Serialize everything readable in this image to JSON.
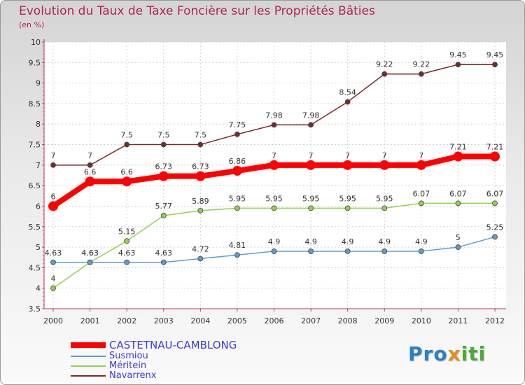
{
  "header": {
    "title": "Evolution du Taux de Taxe Foncière sur les Propriétés Bâties",
    "subtitle": "(en %)"
  },
  "logo": {
    "part1": "Pro",
    "part2": "x",
    "part3": "iti"
  },
  "chart_data": {
    "type": "line",
    "title": "Evolution du Taux de Taxe Foncière sur les Propriétés Bâties",
    "ylabel": "(en %)",
    "xlabel": "",
    "ylim": [
      3.5,
      10
    ],
    "yticks": [
      "3.5",
      "4",
      "4.5",
      "5",
      "5.5",
      "6",
      "6.5",
      "7",
      "7.5",
      "8",
      "8.5",
      "9",
      "9.5",
      "10"
    ],
    "categories": [
      "2000",
      "2001",
      "2002",
      "2003",
      "2004",
      "2005",
      "2006",
      "2007",
      "2008",
      "2009",
      "2010",
      "2011",
      "2012"
    ],
    "legend_position": "bottom-left",
    "series": [
      {
        "name": "CASTETNAU-CAMBLONG",
        "color": "#ff0000",
        "values": [
          6,
          6.6,
          6.6,
          6.73,
          6.73,
          6.86,
          7,
          7,
          7,
          7,
          7,
          7.21,
          7.21
        ],
        "labels": [
          "6",
          "6.6",
          "6.6",
          "6.73",
          "6.73",
          "6.86",
          "7",
          "7",
          "7",
          "7",
          "7",
          "7.21",
          "7.21"
        ]
      },
      {
        "name": "Susmiou",
        "color": "#5f9ccf",
        "values": [
          4.63,
          4.63,
          4.63,
          4.63,
          4.72,
          4.81,
          4.9,
          4.9,
          4.9,
          4.9,
          4.9,
          5,
          5.25
        ],
        "labels": [
          "4.63",
          "4.63",
          "4.63",
          "4.63",
          "4.72",
          "4.81",
          "4.9",
          "4.9",
          "4.9",
          "4.9",
          "4.9",
          "5",
          "5.25"
        ]
      },
      {
        "name": "Méritein",
        "color": "#92d050",
        "values": [
          4,
          4.63,
          5.15,
          5.77,
          5.89,
          5.95,
          5.95,
          5.95,
          5.95,
          5.95,
          6.07,
          6.07,
          6.07
        ],
        "labels": [
          "4",
          "4.63",
          "5.15",
          "5.77",
          "5.89",
          "5.95",
          "5.95",
          "5.95",
          "5.95",
          "5.95",
          "6.07",
          "6.07",
          "6.07"
        ]
      },
      {
        "name": "Navarrenx",
        "color": "#7a2a2a",
        "values": [
          7,
          7,
          7.5,
          7.5,
          7.5,
          7.75,
          7.98,
          7.98,
          8.54,
          9.22,
          9.22,
          9.45,
          9.45
        ],
        "labels": [
          "7",
          "7",
          "7.5",
          "7.5",
          "7.5",
          "7.75",
          "7.98",
          "7.98",
          "8.54",
          "9.22",
          "9.22",
          "9.45",
          "9.45"
        ]
      }
    ]
  }
}
